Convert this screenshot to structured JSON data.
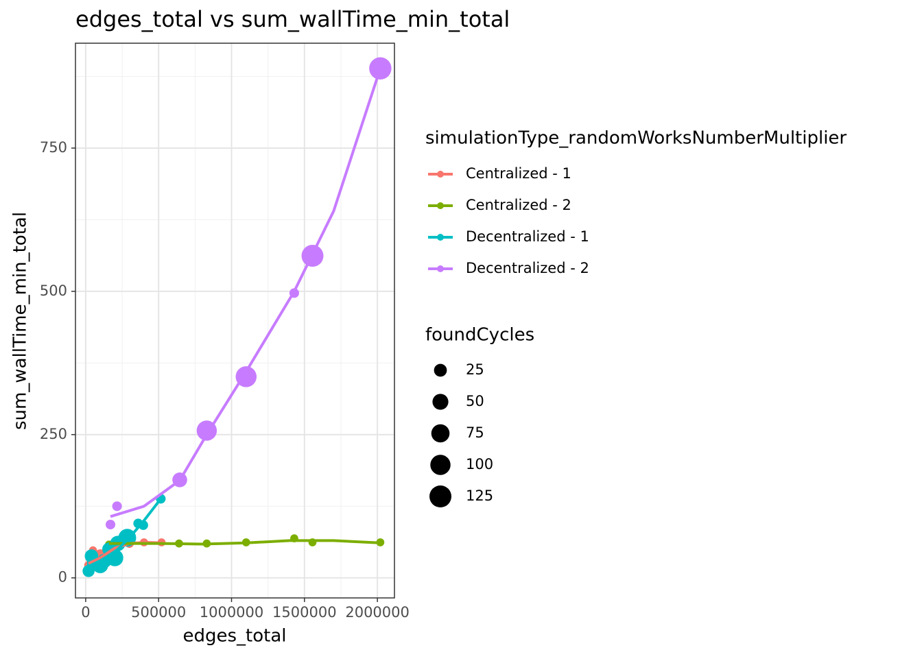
{
  "chart_data": {
    "type": "scatter",
    "title": "edges_total  vs  sum_wallTime_min_total",
    "x_label": "edges_total",
    "y_label": "sum_wallTime_min_total",
    "xlim": [
      -70000,
      2117000
    ],
    "ylim": [
      -35,
      933
    ],
    "xticks": [
      0,
      500000,
      1000000,
      1500000,
      2000000
    ],
    "yticks": [
      0,
      250,
      500,
      750
    ],
    "grid": true,
    "legend_title": "simulationType_randomWorksNumberMultiplier",
    "size_legend_title": "foundCycles",
    "size_legend": [
      25,
      50,
      75,
      100,
      125
    ],
    "series": [
      {
        "name": "Centralized - 1",
        "color": "#f8766d",
        "x": [
          20000,
          50000,
          60000,
          100000,
          150000,
          200000,
          300000,
          400000,
          520000
        ],
        "values": [
          22,
          48,
          30,
          40,
          45,
          55,
          60,
          62,
          62
        ],
        "sizes": [
          5,
          3,
          20,
          15,
          10,
          5,
          5,
          3,
          3
        ],
        "smooth_x": [
          20000,
          100000,
          200000,
          300000,
          400000,
          520000
        ],
        "smooth_values": [
          25,
          35,
          52,
          60,
          62,
          61
        ]
      },
      {
        "name": "Centralized - 2",
        "color": "#7cae00",
        "x": [
          160000,
          200000,
          640000,
          830000,
          1100000,
          1430000,
          1555000,
          2020000
        ],
        "values": [
          58,
          60,
          60,
          60,
          62,
          69,
          62,
          62
        ],
        "sizes": [
          3,
          3,
          3,
          3,
          3,
          3,
          3,
          3
        ],
        "smooth_x": [
          160000,
          500000,
          800000,
          1100000,
          1400000,
          1700000,
          2020000
        ],
        "smooth_values": [
          60,
          60,
          59,
          61,
          65,
          65,
          61
        ]
      },
      {
        "name": "Decentralized - 1",
        "color": "#00bfc4",
        "x": [
          20000,
          40000,
          60000,
          100000,
          130000,
          160000,
          200000,
          220000,
          285000,
          360000,
          395000,
          515000
        ],
        "values": [
          12,
          38,
          25,
          22,
          30,
          50,
          35,
          60,
          70,
          95,
          92,
          138
        ],
        "sizes": [
          20,
          30,
          40,
          50,
          35,
          30,
          60,
          45,
          70,
          8,
          8,
          8
        ],
        "smooth_x": [
          20000,
          100000,
          200000,
          300000,
          400000,
          515000
        ],
        "smooth_values": [
          20,
          30,
          45,
          70,
          100,
          138
        ]
      },
      {
        "name": "Decentralized - 2",
        "color": "#c77cff",
        "x": [
          170000,
          215000,
          645000,
          830000,
          1100000,
          1430000,
          1555000,
          2020000
        ],
        "values": [
          93,
          125,
          171,
          257,
          351,
          497,
          562,
          889
        ],
        "sizes": [
          8,
          8,
          40,
          100,
          110,
          8,
          125,
          130
        ],
        "smooth_x": [
          170000,
          400000,
          645000,
          830000,
          1100000,
          1430000,
          1700000,
          2020000
        ],
        "smooth_values": [
          107,
          125,
          170,
          250,
          360,
          500,
          640,
          889
        ]
      }
    ]
  }
}
